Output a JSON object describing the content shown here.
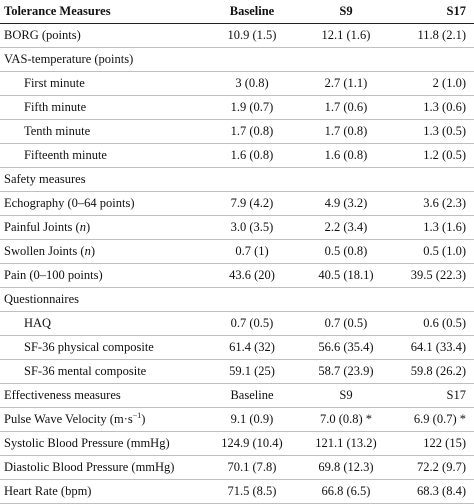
{
  "header": {
    "col0": "Tolerance Measures",
    "col1": "Baseline",
    "col2": "S9",
    "col3": "S17"
  },
  "rows": [
    {
      "type": "data",
      "label": "BORG (points)",
      "v": [
        "10.9 (1.5)",
        "12.1 (1.6)",
        "11.8 (2.1)"
      ]
    },
    {
      "type": "section",
      "label": "VAS-temperature (points)"
    },
    {
      "type": "sub",
      "label": "First minute",
      "v": [
        "3 (0.8)",
        "2.7 (1.1)",
        "2 (1.0)"
      ]
    },
    {
      "type": "sub",
      "label": "Fifth minute",
      "v": [
        "1.9 (0.7)",
        "1.7 (0.6)",
        "1.3 (0.6)"
      ]
    },
    {
      "type": "sub",
      "label": "Tenth minute",
      "v": [
        "1.7 (0.8)",
        "1.7 (0.8)",
        "1.3 (0.5)"
      ]
    },
    {
      "type": "sub",
      "label": "Fifteenth minute",
      "v": [
        "1.6 (0.8)",
        "1.6 (0.8)",
        "1.2 (0.5)"
      ]
    },
    {
      "type": "section",
      "label": "Safety measures"
    },
    {
      "type": "data",
      "label": "Echography (0–64 points)",
      "v": [
        "7.9 (4.2)",
        "4.9 (3.2)",
        "3.6 (2.3)"
      ]
    },
    {
      "type": "data",
      "label": "Painful Joints",
      "label_italic": "n",
      "v": [
        "3.0 (3.5)",
        "2.2 (3.4)",
        "1.3 (1.6)"
      ]
    },
    {
      "type": "data",
      "label": "Swollen Joints",
      "label_italic": "n",
      "v": [
        "0.7 (1)",
        "0.5 (0.8)",
        "0.5 (1.0)"
      ]
    },
    {
      "type": "data",
      "label": "Pain (0–100 points)",
      "v": [
        "43.6 (20)",
        "40.5 (18.1)",
        "39.5 (22.3)"
      ]
    },
    {
      "type": "section",
      "label": "Questionnaires"
    },
    {
      "type": "sub",
      "label": "HAQ",
      "v": [
        "0.7 (0.5)",
        "0.7 (0.5)",
        "0.6 (0.5)"
      ]
    },
    {
      "type": "sub",
      "label": "SF-36 physical composite",
      "v": [
        "61.4 (32)",
        "56.6 (35.4)",
        "64.1 (33.4)"
      ]
    },
    {
      "type": "sub",
      "label": "SF-36 mental composite",
      "v": [
        "59.1 (25)",
        "58.7 (23.9)",
        "59.8 (26.2)"
      ]
    },
    {
      "type": "header2",
      "label": "Effectiveness measures",
      "v": [
        "Baseline",
        "S9",
        "S17"
      ]
    },
    {
      "type": "data",
      "label": "Pulse Wave Velocity (m·s",
      "label_sup": "−1",
      "label_tail": ")",
      "v": [
        "9.1 (0.9)",
        "7.0 (0.8) *",
        "6.9 (0.7) *"
      ]
    },
    {
      "type": "data",
      "label": "Systolic Blood Pressure (mmHg)",
      "v": [
        "124.9 (10.4)",
        "121.1 (13.2)",
        "122 (15)"
      ]
    },
    {
      "type": "data",
      "label": "Diastolic Blood Pressure (mmHg)",
      "v": [
        "70.1 (7.8)",
        "69.8 (12.3)",
        "72.2 (9.7)"
      ]
    },
    {
      "type": "data",
      "label": "Heart Rate (bpm)",
      "v": [
        "71.5 (8.5)",
        "66.8 (6.5)",
        "68.3 (8.4)"
      ]
    }
  ]
}
